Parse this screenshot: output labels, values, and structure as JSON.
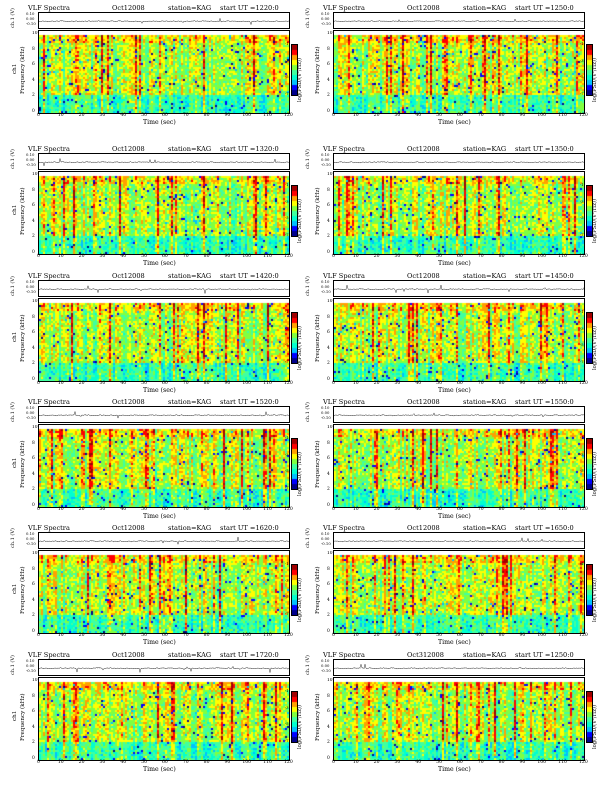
{
  "chart_data": [
    {
      "type": "heatmap",
      "title": "VLF Spectra",
      "date": "Oct12008",
      "station": "station=KAG",
      "start": "start  UT  =1220:0",
      "ts_label": "ch.1 (V)",
      "ts_ticks": [
        "0.10",
        "0.00",
        "-0.10"
      ],
      "ylabel": "Frequency  (kHz)",
      "ylabel2": "ch1",
      "xlabel": "Time  (sec)",
      "x_ticks": [
        "0",
        "10",
        "20",
        "30",
        "40",
        "50",
        "60",
        "70",
        "80",
        "90",
        "100",
        "110",
        "120"
      ],
      "y_ticks": [
        "0",
        "2",
        "4",
        "6",
        "8",
        "10"
      ],
      "xlim": [
        0,
        120
      ],
      "ylim": [
        0,
        10
      ],
      "colorbar_label": "log(PSD/(V²/Hz))",
      "colorbar_ticks": [
        "-1",
        "-3",
        "-5",
        "-7"
      ]
    },
    {
      "type": "heatmap",
      "title": "VLF Spectra",
      "date": "Oct12008",
      "station": "station=KAG",
      "start": "start  UT  =1250:0",
      "ts_label": "ch.1 (V)",
      "ts_ticks": [
        "0.10",
        "0.00",
        "-0.10"
      ],
      "ylabel": "Frequency  (kHz)",
      "ylabel2": "",
      "xlabel": "Time  (sec)",
      "x_ticks": [
        "0",
        "10",
        "20",
        "30",
        "40",
        "50",
        "60",
        "70",
        "80",
        "90",
        "100",
        "110",
        "120"
      ],
      "y_ticks": [
        "0",
        "2",
        "4",
        "6",
        "8",
        "10"
      ],
      "xlim": [
        0,
        120
      ],
      "ylim": [
        0,
        10
      ],
      "colorbar_label": "log(PSD/(V²/Hz))",
      "colorbar_ticks": [
        "-1",
        "-3",
        "-5",
        "-7"
      ]
    },
    {
      "type": "heatmap",
      "title": "VLF Spectra",
      "date": "Oct12008",
      "station": "station=KAG",
      "start": "start  UT  =1320:0",
      "ts_label": "ch.1 (V)",
      "ts_ticks": [
        "0.10",
        "0.00",
        "-0.10"
      ],
      "ylabel": "Frequency  (kHz)",
      "ylabel2": "ch1",
      "xlabel": "Time  (sec)",
      "x_ticks": [
        "0",
        "10",
        "20",
        "30",
        "40",
        "50",
        "60",
        "70",
        "80",
        "90",
        "100",
        "110",
        "120"
      ],
      "y_ticks": [
        "0",
        "2",
        "4",
        "6",
        "8",
        "10"
      ],
      "xlim": [
        0,
        120
      ],
      "ylim": [
        0,
        10
      ],
      "colorbar_label": "log(PSD/(V²/Hz))",
      "colorbar_ticks": [
        "-1",
        "-3",
        "-5",
        "-7"
      ]
    },
    {
      "type": "heatmap",
      "title": "VLF Spectra",
      "date": "Oct12008",
      "station": "station=KAG",
      "start": "start  UT  =1350:0",
      "ts_label": "ch.1 (V)",
      "ts_ticks": [
        "0.10",
        "0.00",
        "-0.10"
      ],
      "ylabel": "Frequency  (kHz)",
      "ylabel2": "",
      "xlabel": "Time  (sec)",
      "x_ticks": [
        "0",
        "10",
        "20",
        "30",
        "40",
        "50",
        "60",
        "70",
        "80",
        "90",
        "100",
        "110",
        "120"
      ],
      "y_ticks": [
        "0",
        "2",
        "4",
        "6",
        "8",
        "10"
      ],
      "xlim": [
        0,
        120
      ],
      "ylim": [
        0,
        10
      ],
      "colorbar_label": "log(PSD/(V²/Hz))",
      "colorbar_ticks": [
        "-1",
        "-3",
        "-5",
        "-7"
      ]
    },
    {
      "type": "heatmap",
      "title": "VLF Spectra",
      "date": "Oct12008",
      "station": "station=KAG",
      "start": "start  UT  =1420:0",
      "ts_label": "ch.1 (V)",
      "ts_ticks": [
        "0.10",
        "0.00",
        "-0.10"
      ],
      "ylabel": "Frequency  (kHz)",
      "ylabel2": "ch1",
      "xlabel": "Time  (sec)",
      "x_ticks": [
        "0",
        "10",
        "20",
        "30",
        "40",
        "50",
        "60",
        "70",
        "80",
        "90",
        "100",
        "110",
        "120"
      ],
      "y_ticks": [
        "0",
        "2",
        "4",
        "6",
        "8",
        "10"
      ],
      "xlim": [
        0,
        120
      ],
      "ylim": [
        0,
        10
      ],
      "colorbar_label": "log(PSD/(V²/Hz))",
      "colorbar_ticks": [
        "-1",
        "-3",
        "-5",
        "-7"
      ]
    },
    {
      "type": "heatmap",
      "title": "VLF Spectra",
      "date": "Oct12008",
      "station": "station=KAG",
      "start": "start  UT  =1450:0",
      "ts_label": "ch.1 (V)",
      "ts_ticks": [
        "0.10",
        "0.00",
        "-0.10"
      ],
      "ylabel": "Frequency  (kHz)",
      "ylabel2": "",
      "xlabel": "Time  (sec)",
      "x_ticks": [
        "0",
        "10",
        "20",
        "30",
        "40",
        "50",
        "60",
        "70",
        "80",
        "90",
        "100",
        "110",
        "120"
      ],
      "y_ticks": [
        "0",
        "2",
        "4",
        "6",
        "8",
        "10"
      ],
      "xlim": [
        0,
        120
      ],
      "ylim": [
        0,
        10
      ],
      "colorbar_label": "log(PSD/(V²/Hz))",
      "colorbar_ticks": [
        "-1",
        "-3",
        "-5",
        "-7"
      ]
    },
    {
      "type": "heatmap",
      "title": "VLF Spectra",
      "date": "Oct12008",
      "station": "station=KAG",
      "start": "start  UT  =1520:0",
      "ts_label": "ch.1 (V)",
      "ts_ticks": [
        "0.10",
        "0.00",
        "-0.10"
      ],
      "ylabel": "Frequency  (kHz)",
      "ylabel2": "ch1",
      "xlabel": "Time  (sec)",
      "x_ticks": [
        "0",
        "10",
        "20",
        "30",
        "40",
        "50",
        "60",
        "70",
        "80",
        "90",
        "100",
        "110",
        "120"
      ],
      "y_ticks": [
        "0",
        "2",
        "4",
        "6",
        "8",
        "10"
      ],
      "xlim": [
        0,
        120
      ],
      "ylim": [
        0,
        10
      ],
      "colorbar_label": "log(PSD/(V²/Hz))",
      "colorbar_ticks": [
        "-1",
        "-3",
        "-5",
        "-7"
      ]
    },
    {
      "type": "heatmap",
      "title": "VLF Spectra",
      "date": "Oct12008",
      "station": "station=KAG",
      "start": "start  UT  =1550:0",
      "ts_label": "ch.1 (V)",
      "ts_ticks": [
        "0.10",
        "0.00",
        "-0.10"
      ],
      "ylabel": "Frequency  (kHz)",
      "ylabel2": "",
      "xlabel": "Time  (sec)",
      "x_ticks": [
        "0",
        "10",
        "20",
        "30",
        "40",
        "50",
        "60",
        "70",
        "80",
        "90",
        "100",
        "110",
        "120"
      ],
      "y_ticks": [
        "0",
        "2",
        "4",
        "6",
        "8",
        "10"
      ],
      "xlim": [
        0,
        120
      ],
      "ylim": [
        0,
        10
      ],
      "colorbar_label": "log(PSD/(V²/Hz))",
      "colorbar_ticks": [
        "-1",
        "-3",
        "-5",
        "-7"
      ]
    },
    {
      "type": "heatmap",
      "title": "VLF Spectra",
      "date": "Oct12008",
      "station": "station=KAG",
      "start": "start  UT  =1620:0",
      "ts_label": "ch.1 (V)",
      "ts_ticks": [
        "0.10",
        "0.00",
        "-0.10"
      ],
      "ylabel": "Frequency  (kHz)",
      "ylabel2": "ch1",
      "xlabel": "Time  (sec)",
      "x_ticks": [
        "0",
        "10",
        "20",
        "30",
        "40",
        "50",
        "60",
        "70",
        "80",
        "90",
        "100",
        "110",
        "120"
      ],
      "y_ticks": [
        "0",
        "2",
        "4",
        "6",
        "8",
        "10"
      ],
      "xlim": [
        0,
        120
      ],
      "ylim": [
        0,
        10
      ],
      "colorbar_label": "log(PSD/(V²/Hz))",
      "colorbar_ticks": [
        "-1",
        "-3",
        "-5",
        "-7"
      ]
    },
    {
      "type": "heatmap",
      "title": "VLF Spectra",
      "date": "Oct12008",
      "station": "station=KAG",
      "start": "start  UT  =1650:0",
      "ts_label": "ch.1 (V)",
      "ts_ticks": [
        "0.10",
        "0.00",
        "-0.10"
      ],
      "ylabel": "Frequency  (kHz)",
      "ylabel2": "",
      "xlabel": "Time  (sec)",
      "x_ticks": [
        "0",
        "10",
        "20",
        "30",
        "40",
        "50",
        "60",
        "70",
        "80",
        "90",
        "100",
        "110",
        "120"
      ],
      "y_ticks": [
        "0",
        "2",
        "4",
        "6",
        "8",
        "10"
      ],
      "xlim": [
        0,
        120
      ],
      "ylim": [
        0,
        10
      ],
      "colorbar_label": "log(PSD/(V²/Hz))",
      "colorbar_ticks": [
        "-1",
        "-3",
        "-5",
        "-7"
      ]
    },
    {
      "type": "heatmap",
      "title": "VLF Spectra",
      "date": "Oct12008",
      "station": "station=KAG",
      "start": "start  UT  =1720:0",
      "ts_label": "ch.1 (V)",
      "ts_ticks": [
        "0.10",
        "0.00",
        "-0.10"
      ],
      "ylabel": "Frequency  (kHz)",
      "ylabel2": "ch1",
      "xlabel": "Time  (sec)",
      "x_ticks": [
        "0",
        "10",
        "20",
        "30",
        "40",
        "50",
        "60",
        "70",
        "80",
        "90",
        "100",
        "110",
        "120"
      ],
      "y_ticks": [
        "0",
        "2",
        "4",
        "6",
        "8",
        "10"
      ],
      "xlim": [
        0,
        120
      ],
      "ylim": [
        0,
        10
      ],
      "colorbar_label": "log(PSD/(V²/Hz))",
      "colorbar_ticks": [
        "-1",
        "-3",
        "-5",
        "-7"
      ]
    },
    {
      "type": "heatmap",
      "title": "VLF Spectra",
      "date": "Oct312008",
      "station": "station=KAG",
      "start": "start  UT  =1250:0",
      "ts_label": "ch.1 (V)",
      "ts_ticks": [
        "0.10",
        "0.00",
        "-0.10"
      ],
      "ylabel": "Frequency  (kHz)",
      "ylabel2": "",
      "xlabel": "Time  (sec)",
      "x_ticks": [
        "0",
        "10",
        "20",
        "30",
        "40",
        "50",
        "60",
        "70",
        "80",
        "90",
        "100",
        "110",
        "120"
      ],
      "y_ticks": [
        "0",
        "2",
        "4",
        "6",
        "8",
        "10"
      ],
      "xlim": [
        0,
        120
      ],
      "ylim": [
        0,
        10
      ],
      "colorbar_label": "log(PSD/(V²/Hz))",
      "colorbar_ticks": [
        "-1",
        "-3",
        "-5",
        "-7"
      ]
    }
  ],
  "colormap": [
    "#00008b",
    "#0000ff",
    "#00c0ff",
    "#00ffd0",
    "#40ffa0",
    "#80ff40",
    "#ffff00",
    "#ffa000",
    "#ff0000",
    "#a00000"
  ]
}
